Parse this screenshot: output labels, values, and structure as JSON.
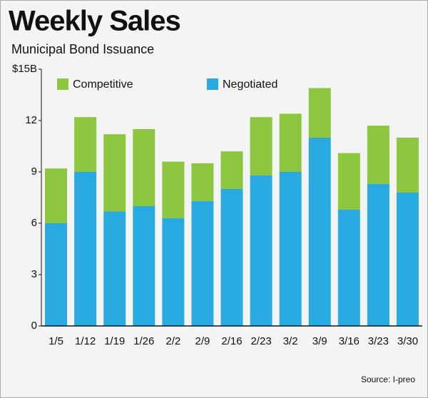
{
  "chart_data": {
    "type": "stacked-bar",
    "title": "Weekly Sales",
    "subtitle": "Municipal Bond Issuance",
    "source": "Source: I-preo",
    "categories": [
      "1/5",
      "1/12",
      "1/19",
      "1/26",
      "2/2",
      "2/9",
      "2/16",
      "2/23",
      "3/2",
      "3/9",
      "3/16",
      "3/23",
      "3/30"
    ],
    "series": [
      {
        "name": "Competitive",
        "color": "#8dc63f",
        "values": [
          3.2,
          3.2,
          4.5,
          4.5,
          3.3,
          2.2,
          2.2,
          3.4,
          3.4,
          2.9,
          3.3,
          3.4,
          3.2
        ]
      },
      {
        "name": "Negotiated",
        "color": "#29abe2",
        "values": [
          6.0,
          9.0,
          6.7,
          7.0,
          6.3,
          7.3,
          8.0,
          8.8,
          9.0,
          11.0,
          6.8,
          8.3,
          7.8
        ]
      }
    ],
    "ylim": [
      0,
      15
    ],
    "yticks": [
      0,
      3,
      6,
      9,
      12,
      {
        "value": 15,
        "label": "$15B"
      }
    ],
    "grid": false
  }
}
